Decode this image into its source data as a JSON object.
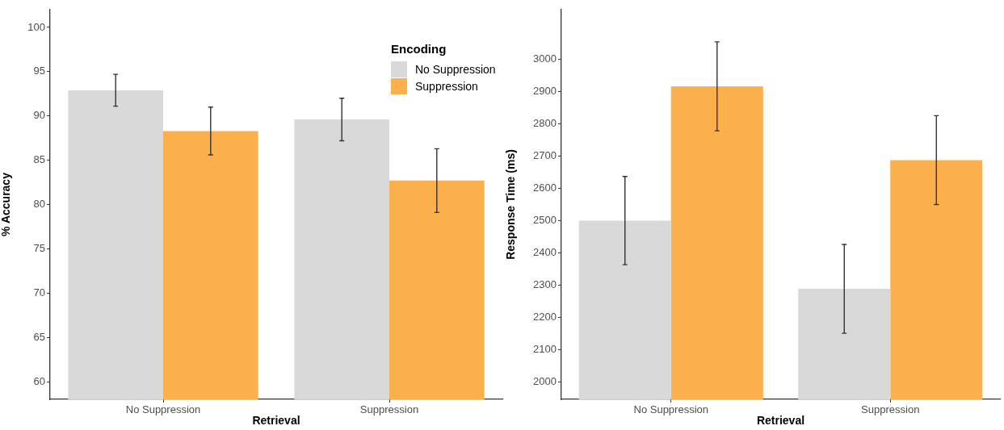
{
  "chart_data": [
    {
      "type": "bar",
      "xlabel": "Retrieval",
      "ylabel": "% Accuracy",
      "legend_title": "Encoding",
      "legend": "top right",
      "grid": false,
      "categories": [
        "No Suppression",
        "Suppression"
      ],
      "series": [
        {
          "name": "No Suppression",
          "color": "#d9d9d9",
          "values": [
            92.9,
            89.6
          ],
          "errors": [
            1.8,
            2.4
          ]
        },
        {
          "name": "Suppression",
          "color": "#fbb04c",
          "values": [
            88.3,
            82.7
          ],
          "errors": [
            2.7,
            3.6
          ]
        }
      ],
      "ylim": [
        58,
        102
      ],
      "yticks": [
        60,
        65,
        70,
        75,
        80,
        85,
        90,
        95,
        100
      ]
    },
    {
      "type": "bar",
      "xlabel": "Retrieval",
      "ylabel": "Response Time (ms)",
      "legend": false,
      "grid": false,
      "categories": [
        "No Suppression",
        "Suppression"
      ],
      "series": [
        {
          "color": "#d9d9d9",
          "values": [
            2500,
            2288
          ],
          "errors": [
            137,
            138
          ]
        },
        {
          "color": "#fbb04c",
          "values": [
            2917,
            2688
          ],
          "errors": [
            138,
            138
          ]
        }
      ],
      "ylim": [
        1945,
        3155
      ],
      "yticks": [
        2000,
        2100,
        2200,
        2300,
        2400,
        2500,
        2600,
        2700,
        2800,
        2900,
        3000
      ]
    }
  ]
}
